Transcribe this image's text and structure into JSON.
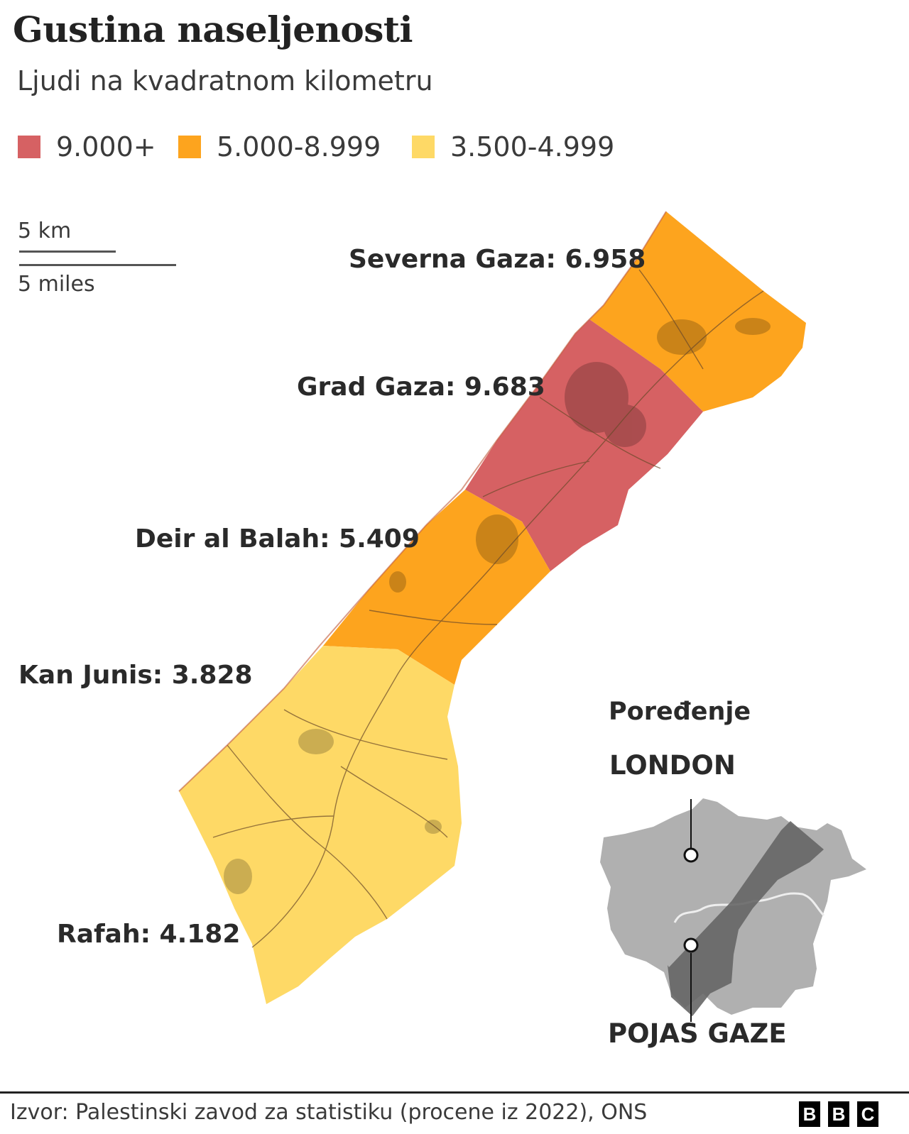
{
  "title": "Gustina naseljenosti",
  "subtitle": "Ljudi na kvadratnom kilometru",
  "legend": [
    {
      "label": "9.000+",
      "color": "#d66163"
    },
    {
      "label": "5.000-8.999",
      "color": "#fda41e"
    },
    {
      "label": "3.500-4.999",
      "color": "#fed966"
    }
  ],
  "scale": {
    "km_label": "5 km",
    "miles_label": "5 miles"
  },
  "regions": [
    {
      "label": "Severna Gaza: 6.958",
      "density": 6958,
      "color": "#fda41e"
    },
    {
      "label": "Grad Gaza: 9.683",
      "density": 9683,
      "color": "#d66163"
    },
    {
      "label": "Deir al Balah: 5.409",
      "density": 5409,
      "color": "#fda41e"
    },
    {
      "label": "Kan Junis: 3.828",
      "density": 3828,
      "color": "#fed966"
    },
    {
      "label": "Rafah: 4.182",
      "density": 4182,
      "color": "#fed966"
    }
  ],
  "comparison": {
    "heading": "Poređenje",
    "london_label": "LONDON",
    "gaza_label": "POJAS GAZE"
  },
  "footer": {
    "source": "Izvor: Palestinski zavod za statistiku (procene iz 2022), ONS",
    "logo": [
      "B",
      "B",
      "C"
    ]
  }
}
